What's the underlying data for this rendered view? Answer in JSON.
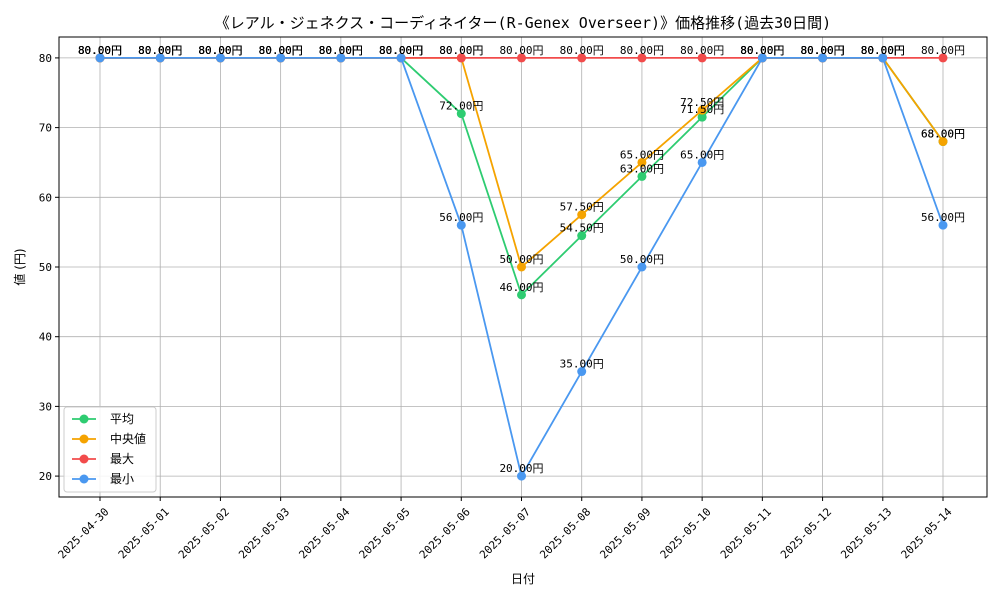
{
  "chart_data": {
    "type": "line",
    "title": "《レアル・ジェネクス・コーディネイター(R-Genex Overseer)》価格推移(過去30日間)",
    "xlabel": "日付",
    "ylabel": "値 (円)",
    "ylim": [
      17,
      83
    ],
    "yticks": [
      20,
      30,
      40,
      50,
      60,
      70,
      80
    ],
    "grid": true,
    "legend_position": "lower-left",
    "label_suffix": "円",
    "categories": [
      "2025-04-30",
      "2025-05-01",
      "2025-05-02",
      "2025-05-03",
      "2025-05-04",
      "2025-05-05",
      "2025-05-06",
      "2025-05-07",
      "2025-05-08",
      "2025-05-09",
      "2025-05-10",
      "2025-05-11",
      "2025-05-12",
      "2025-05-13",
      "2025-05-14"
    ],
    "series": [
      {
        "name": "平均",
        "color": "#2ecc71",
        "values": [
          80,
          80,
          80,
          80,
          80,
          80,
          72,
          46,
          54.5,
          63,
          71.5,
          80,
          80,
          80,
          68
        ]
      },
      {
        "name": "中央値",
        "color": "#f5a300",
        "values": [
          80,
          80,
          80,
          80,
          80,
          80,
          80,
          50,
          57.5,
          65,
          72.5,
          80,
          80,
          80,
          68
        ]
      },
      {
        "name": "最大",
        "color": "#f24b4b",
        "values": [
          80,
          80,
          80,
          80,
          80,
          80,
          80,
          80,
          80,
          80,
          80,
          80,
          80,
          80,
          80
        ]
      },
      {
        "name": "最小",
        "color": "#4a98f0",
        "values": [
          80,
          80,
          80,
          80,
          80,
          80,
          56,
          20,
          35,
          50,
          65,
          80,
          80,
          80,
          56
        ]
      }
    ]
  }
}
